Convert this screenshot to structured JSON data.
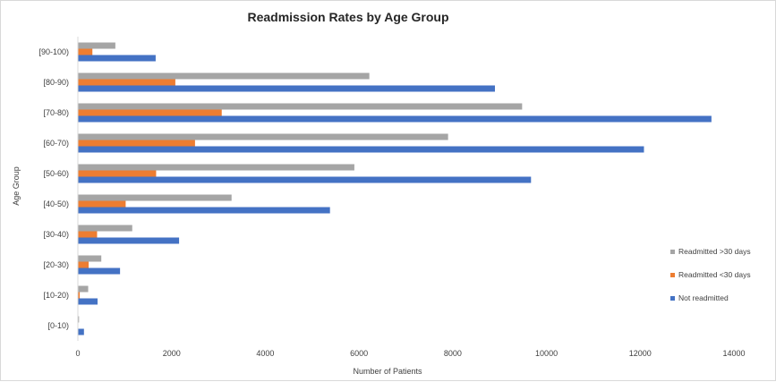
{
  "chart_data": {
    "type": "bar",
    "orientation": "horizontal",
    "title": "Readmission Rates by Age Group",
    "xlabel": "Number of Patients",
    "ylabel": "Age Group",
    "categories": [
      "[0-10)",
      "[10-20)",
      "[20-30)",
      "[30-40)",
      "[40-50)",
      "[50-60)",
      "[60-70)",
      "[70-80)",
      "[80-90)",
      "[90-100)"
    ],
    "series": [
      {
        "name": "Readmitted >30 days",
        "color": "#a5a5a5",
        "values": [
          25,
          220,
          500,
          1160,
          3280,
          5900,
          7900,
          9480,
          6220,
          800
        ]
      },
      {
        "name": "Readmitted <30 days",
        "color": "#ed7d31",
        "values": [
          3,
          40,
          230,
          410,
          1020,
          1670,
          2500,
          3070,
          2080,
          310
        ]
      },
      {
        "name": "Not readmitted",
        "color": "#4472c4",
        "values": [
          130,
          420,
          900,
          2160,
          5380,
          9670,
          12080,
          13520,
          8900,
          1660
        ]
      }
    ],
    "xlim": [
      0,
      14000
    ],
    "xticks": [
      "0",
      "2000",
      "4000",
      "6000",
      "8000",
      "10000",
      "12000",
      "14000"
    ],
    "legend_position": "right",
    "grid": false
  }
}
